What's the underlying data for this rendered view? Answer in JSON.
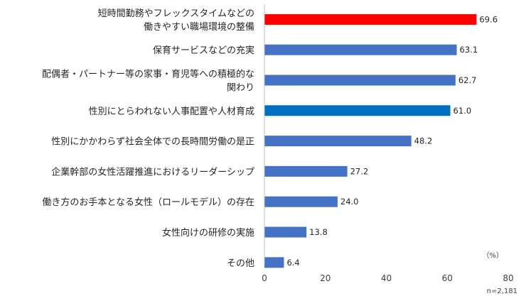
{
  "chart_data": {
    "type": "bar",
    "orientation": "horizontal",
    "categories": [
      [
        "短時間勤務やフレックスタイムなどの",
        "働きやすい職場環境の整備"
      ],
      [
        "保育サービスなどの充実"
      ],
      [
        "配偶者・パートナー等の家事・育児等への積極的な",
        "関わり"
      ],
      [
        "性別にとらわれない人事配置や人材育成"
      ],
      [
        "性別にかかわらず社会全体での長時間労働の是正"
      ],
      [
        "企業幹部の女性活躍推進におけるリーダーシップ"
      ],
      [
        "働き方のお手本となる女性（ロールモデル）の存在"
      ],
      [
        "女性向けの研修の実施"
      ],
      [
        "その他"
      ]
    ],
    "values": [
      69.6,
      63.1,
      62.7,
      61.0,
      48.2,
      27.2,
      24.0,
      13.8,
      6.4
    ],
    "value_labels": [
      "69.6",
      "63.1",
      "62.7",
      "61.0",
      "48.2",
      "27.2",
      "24.0",
      "13.8",
      "6.4"
    ],
    "bar_colors": [
      "#ff0000",
      "#4472c4",
      "#4472c4",
      "#0070c0",
      "#4472c4",
      "#4472c4",
      "#4472c4",
      "#4472c4",
      "#4472c4"
    ],
    "xlim": [
      0,
      80
    ],
    "xticks": [
      "0",
      "20",
      "40",
      "60",
      "80"
    ],
    "unit_label": "（%）",
    "sample_note": "n=2,181",
    "grid": false
  }
}
